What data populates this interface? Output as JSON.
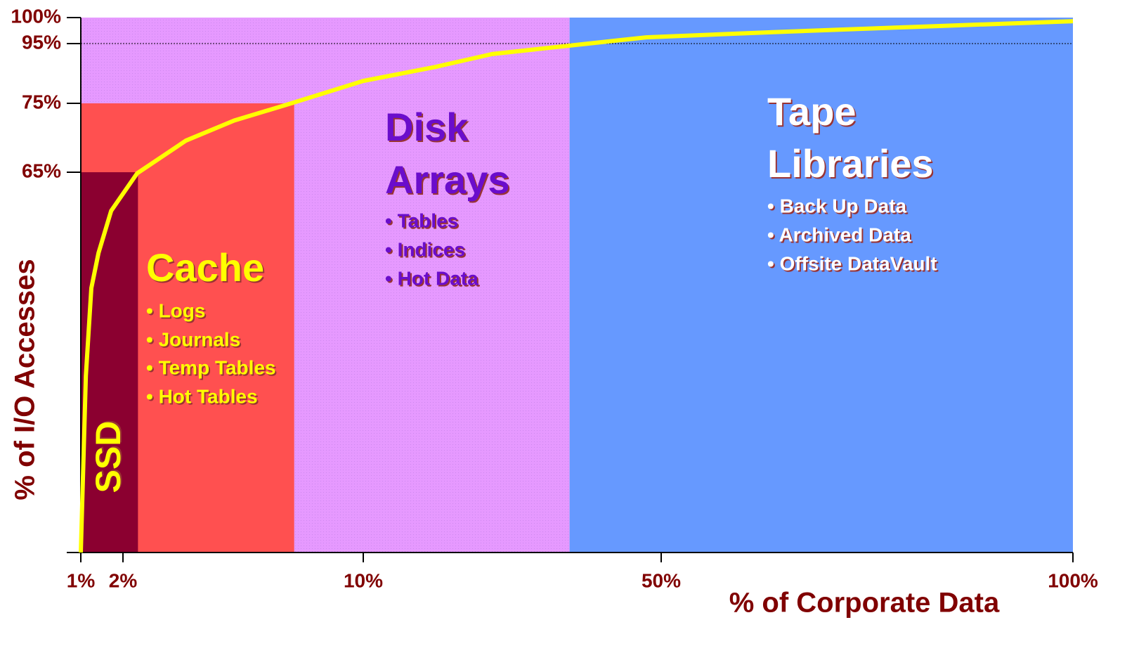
{
  "chart_data": {
    "type": "line",
    "x_label": "% of Corporate Data",
    "y_label": "% of I/O Accesses",
    "xlim": [
      1,
      100
    ],
    "xticks": [
      {
        "value": 1,
        "label": "1%"
      },
      {
        "value": 2,
        "label": "2%"
      },
      {
        "value": 10,
        "label": "10%"
      },
      {
        "value": 50,
        "label": "50%"
      },
      {
        "value": 100,
        "label": "100%"
      }
    ],
    "ylim": [
      0,
      100
    ],
    "yticks": [
      {
        "value": 65,
        "label": "65%"
      },
      {
        "value": 75,
        "label": "75%"
      },
      {
        "value": 95,
        "label": "95%"
      },
      {
        "value": 100,
        "label": "100%"
      }
    ],
    "reference_line": 95,
    "series": [
      {
        "color": "#ffff00",
        "x": [
          1,
          1.12,
          1.25,
          1.42,
          1.72,
          2.47,
          4.1,
          5.7,
          7.6,
          10,
          19.7,
          27.3,
          37.6,
          48,
          63.6,
          80.6,
          100
        ],
        "values": [
          0,
          30.2,
          45.2,
          51.2,
          58.4,
          64.8,
          69.6,
          72.5,
          75,
          82.5,
          87.2,
          91.5,
          94.3,
          96.2,
          97.2,
          98.2,
          99.3
        ]
      }
    ],
    "regions": [
      {
        "label": [
          "Disk",
          "Arrays"
        ],
        "items": [
          "• Tables",
          "• Indices",
          "• Hot Data"
        ],
        "x_range": [
          1,
          37.7
        ],
        "top": 100,
        "color": "#e699ff",
        "text_color": "#6a0dcc"
      },
      {
        "label": [
          "Cache"
        ],
        "items": [
          "•  Logs",
          "• Journals",
          "• Temp Tables",
          "• Hot Tables"
        ],
        "x_range": [
          1,
          7.7
        ],
        "top": 75,
        "color": "#ff5050",
        "text_color": "#ffff00"
      },
      {
        "label": [
          "SSD"
        ],
        "items": [],
        "x_range": [
          1,
          2.5
        ],
        "top": 65,
        "color": "#8b0030",
        "text_color": "#ffff00"
      },
      {
        "label": [
          "Tape",
          "Libraries"
        ],
        "items": [
          "• Back Up Data",
          "• Archived Data",
          "• Offsite DataVault"
        ],
        "x_range": [
          37.7,
          100
        ],
        "top": 100,
        "color": "#6699ff",
        "text_color": "#ffffff"
      }
    ]
  }
}
